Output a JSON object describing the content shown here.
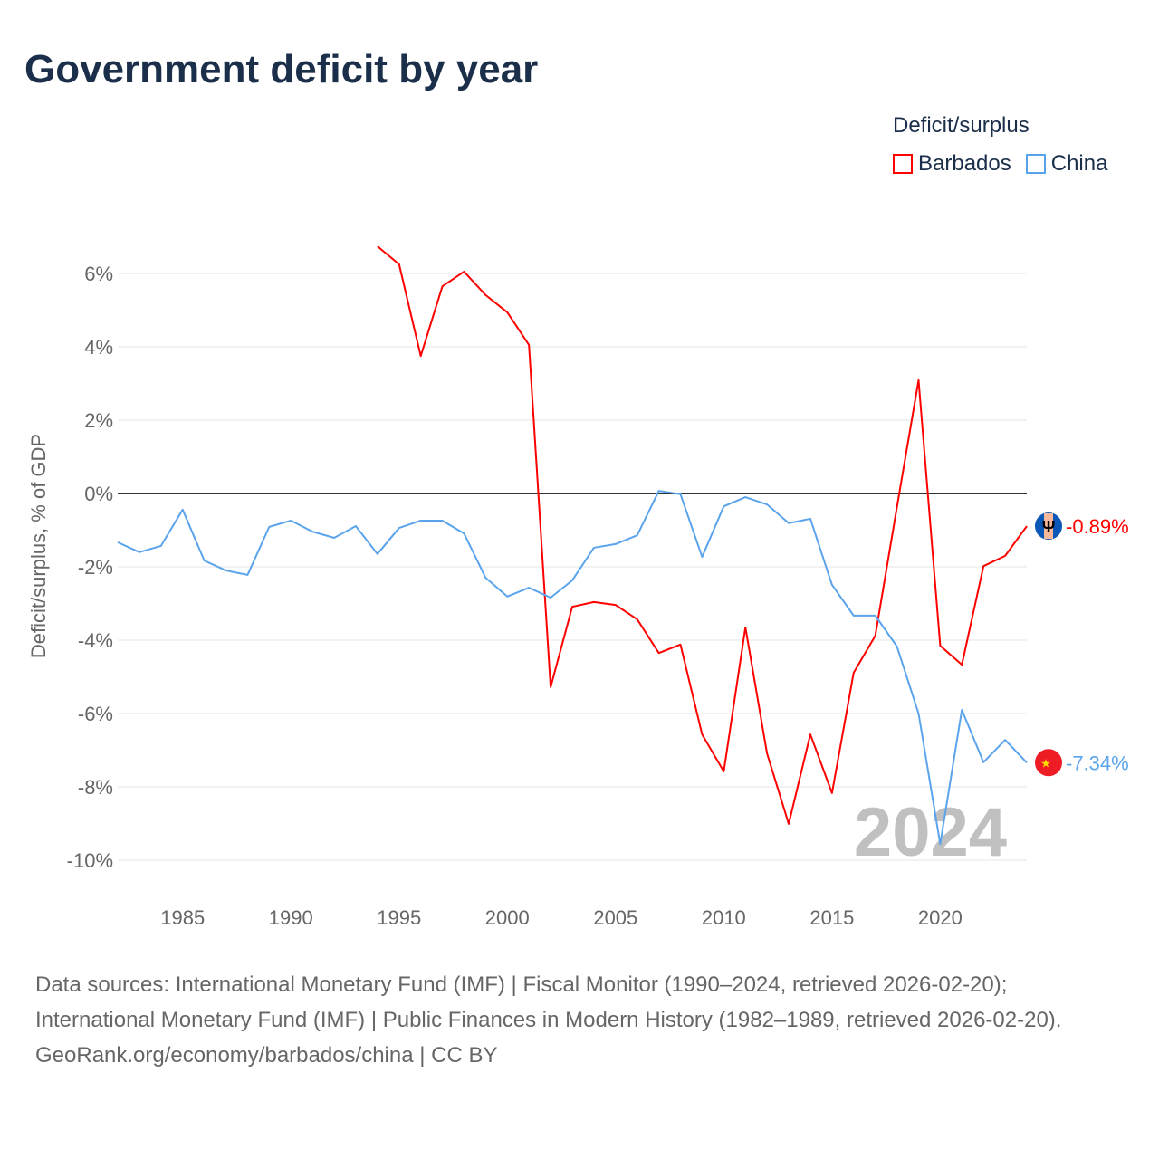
{
  "chart_data": {
    "type": "line",
    "title": "Government deficit by year",
    "ylabel": "Deficit/surplus, % of GDP",
    "xlabel": "",
    "xlim": [
      1982,
      2024
    ],
    "ylim": [
      -11,
      7.5
    ],
    "yticks": [
      6,
      4,
      2,
      0,
      -2,
      -4,
      -6,
      -8,
      -10
    ],
    "ytick_labels": [
      "6%",
      "4%",
      "2%",
      "0%",
      "-2%",
      "-4%",
      "-6%",
      "-8%",
      "-10%"
    ],
    "xticks": [
      1985,
      1990,
      1995,
      2000,
      2005,
      2010,
      2015,
      2020
    ],
    "xtick_labels": [
      "1985",
      "1990",
      "1995",
      "2000",
      "2005",
      "2010",
      "2015",
      "2020"
    ],
    "grid": true,
    "legend_title": "Deficit/surplus",
    "legend_position": "top-right",
    "year_watermark": "2024",
    "series": [
      {
        "name": "Barbados",
        "color": "#ff0000",
        "end_label": "-0.89%",
        "flag_icon": "barbados-flag-icon",
        "x": [
          1994,
          1995,
          1996,
          1997,
          1998,
          1999,
          2000,
          2001,
          2002,
          2003,
          2004,
          2005,
          2006,
          2007,
          2008,
          2009,
          2010,
          2011,
          2012,
          2013,
          2014,
          2015,
          2016,
          2017,
          2018,
          2019,
          2020,
          2021,
          2022,
          2023,
          2024
        ],
        "values": [
          6.74,
          6.25,
          3.75,
          5.65,
          6.05,
          5.41,
          4.94,
          4.05,
          -5.28,
          -3.09,
          -2.96,
          -3.04,
          -3.43,
          -4.35,
          -4.12,
          -6.57,
          -7.58,
          -3.65,
          -7.09,
          -9.01,
          -6.57,
          -8.17,
          -4.89,
          -3.88,
          -0.37,
          3.09,
          -4.15,
          -4.67,
          -1.98,
          -1.7,
          -0.89
        ]
      },
      {
        "name": "China",
        "color": "#5ba4ec",
        "end_label": "-7.34%",
        "flag_icon": "china-flag-icon",
        "x": [
          1982,
          1983,
          1984,
          1985,
          1986,
          1987,
          1988,
          1989,
          1990,
          1991,
          1992,
          1993,
          1994,
          1995,
          1996,
          1997,
          1998,
          1999,
          2000,
          2001,
          2002,
          2003,
          2004,
          2005,
          2006,
          2007,
          2008,
          2009,
          2010,
          2011,
          2012,
          2013,
          2014,
          2015,
          2016,
          2017,
          2018,
          2019,
          2020,
          2021,
          2022,
          2023,
          2024
        ],
        "values": [
          -1.33,
          -1.6,
          -1.43,
          -0.44,
          -1.83,
          -2.1,
          -2.22,
          -0.91,
          -0.74,
          -1.04,
          -1.21,
          -0.89,
          -1.65,
          -0.94,
          -0.74,
          -0.74,
          -1.09,
          -2.3,
          -2.81,
          -2.57,
          -2.84,
          -2.37,
          -1.48,
          -1.38,
          -1.14,
          0.07,
          -0.02,
          -1.73,
          -0.35,
          -0.1,
          -0.3,
          -0.81,
          -0.69,
          -2.49,
          -3.33,
          -3.33,
          -4.17,
          -6.0,
          -9.56,
          -5.9,
          -7.33,
          -6.72,
          -7.34
        ]
      }
    ]
  },
  "sources": {
    "line1": "Data sources: International Monetary Fund (IMF) | Fiscal Monitor (1990–2024, retrieved 2026-02-20); International Monetary Fund (IMF) | Public Finances in Modern History (1982–1989, retrieved 2026-02-20).",
    "line2": "GeoRank.org/economy/barbados/china | CC BY"
  }
}
